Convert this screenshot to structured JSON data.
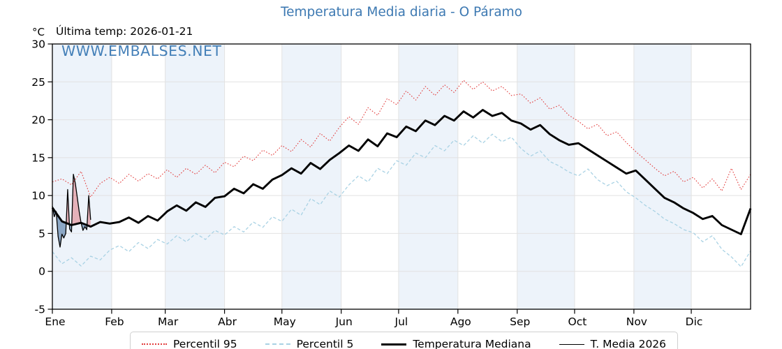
{
  "header": {
    "title": "Temperatura Media diaria - O Páramo",
    "unit_label": "°C",
    "last_temp_label": "Última temp: 2026-01-21",
    "watermark": "WWW.EMBALSES.NET"
  },
  "colors": {
    "title_blue": "#3d79b2",
    "percentil95_red": "#e23c3c",
    "percentil5_blue": "#a9d2e4",
    "median_black": "#000000",
    "fill_above": "rgba(215,70,80,0.38)",
    "fill_below": "rgba(60,105,155,0.55)",
    "month_band": "#edf3fa",
    "grid": "#e2e2e2",
    "axis": "#000000"
  },
  "chart_data": {
    "type": "line",
    "title": "Temperatura Media diaria - O Páramo",
    "xlabel": "",
    "ylabel": "°C",
    "ylim": [
      -5,
      30
    ],
    "y_ticks": [
      -5,
      0,
      5,
      10,
      15,
      20,
      25,
      30
    ],
    "x_tick_labels": [
      "Ene",
      "Feb",
      "Mar",
      "Abr",
      "May",
      "Jun",
      "Jul",
      "Ago",
      "Sep",
      "Oct",
      "Nov",
      "Dic"
    ],
    "month_start_days": [
      0,
      31,
      59,
      90,
      120,
      151,
      181,
      212,
      243,
      273,
      304,
      334,
      365
    ],
    "days_in_year": 365,
    "grid": true,
    "legend_position": "bottom",
    "series": [
      {
        "name": "Percentil 95",
        "style": "dotted",
        "color": "#e23c3c",
        "width": 1.1,
        "step_days": 5,
        "values": [
          11.8,
          12.2,
          11.4,
          13.2,
          9.8,
          11.6,
          12.4,
          11.6,
          12.8,
          11.9,
          12.9,
          12.2,
          13.4,
          12.4,
          13.6,
          12.8,
          14.0,
          13.0,
          14.4,
          13.8,
          15.2,
          14.6,
          16.0,
          15.3,
          16.6,
          15.8,
          17.4,
          16.4,
          18.2,
          17.2,
          19.0,
          20.4,
          19.4,
          21.6,
          20.6,
          22.8,
          22.0,
          23.8,
          22.6,
          24.4,
          23.2,
          24.6,
          23.6,
          25.2,
          24.0,
          25.0,
          23.8,
          24.4,
          23.2,
          23.4,
          22.2,
          22.9,
          21.4,
          21.9,
          20.6,
          19.8,
          18.8,
          19.4,
          17.9,
          18.4,
          17.0,
          15.8,
          14.7,
          13.6,
          12.6,
          13.2,
          11.8,
          12.4,
          11.0,
          12.2,
          10.6,
          13.6,
          10.8,
          12.8
        ]
      },
      {
        "name": "Percentil 5",
        "style": "dashed",
        "color": "#a9d2e4",
        "width": 1.3,
        "step_days": 5,
        "values": [
          2.6,
          1.0,
          1.8,
          0.7,
          2.0,
          1.5,
          2.8,
          3.4,
          2.6,
          3.8,
          3.0,
          4.2,
          3.6,
          4.7,
          3.9,
          5.0,
          4.2,
          5.4,
          4.8,
          5.9,
          5.2,
          6.5,
          5.8,
          7.2,
          6.6,
          8.2,
          7.4,
          9.6,
          8.8,
          10.6,
          9.8,
          11.4,
          12.6,
          11.8,
          13.6,
          12.9,
          14.6,
          14.0,
          15.6,
          15.0,
          16.6,
          15.9,
          17.3,
          16.6,
          17.9,
          16.9,
          18.1,
          17.1,
          17.7,
          16.2,
          15.2,
          15.9,
          14.5,
          13.9,
          13.1,
          12.6,
          13.5,
          12.1,
          11.3,
          11.9,
          10.5,
          9.7,
          8.7,
          7.9,
          6.9,
          6.3,
          5.5,
          5.1,
          3.9,
          4.7,
          2.9,
          1.9,
          0.6,
          2.7
        ]
      },
      {
        "name": "Temperatura Mediana",
        "style": "solid",
        "color": "#000000",
        "width": 2.9,
        "step_days": 5,
        "values": [
          8.4,
          6.6,
          6.1,
          6.4,
          5.9,
          6.5,
          6.3,
          6.5,
          7.1,
          6.4,
          7.3,
          6.7,
          7.9,
          8.7,
          8.0,
          9.1,
          8.5,
          9.7,
          9.9,
          10.9,
          10.3,
          11.5,
          10.9,
          12.1,
          12.7,
          13.6,
          12.9,
          14.3,
          13.5,
          14.7,
          15.6,
          16.6,
          15.9,
          17.4,
          16.5,
          18.2,
          17.7,
          19.1,
          18.5,
          19.9,
          19.3,
          20.5,
          19.9,
          21.1,
          20.3,
          21.3,
          20.5,
          20.9,
          19.9,
          19.5,
          18.7,
          19.3,
          18.1,
          17.3,
          16.7,
          16.9,
          16.1,
          15.3,
          14.5,
          13.7,
          12.9,
          13.3,
          12.1,
          10.9,
          9.7,
          9.1,
          8.3,
          7.7,
          6.9,
          7.3,
          6.1,
          5.5,
          4.9,
          8.3
        ]
      },
      {
        "name": "T. Media 2026",
        "style": "solid",
        "color": "#000000",
        "width": 1.3,
        "step_days": 1,
        "values": [
          8.6,
          7.2,
          7.9,
          4.6,
          3.2,
          4.9,
          4.4,
          5.0,
          10.8,
          5.6,
          5.2,
          12.8,
          11.6,
          9.8,
          7.9,
          6.4,
          5.4,
          5.9,
          5.5,
          10.0,
          6.8
        ]
      }
    ],
    "fills": {
      "between": [
        "T. Media 2026",
        "Temperatura Mediana"
      ],
      "above_color": "rgba(215,70,80,0.38)",
      "below_color": "rgba(60,105,155,0.55)"
    }
  },
  "legend": {
    "items": [
      "Percentil 95",
      "Percentil 5",
      "Temperatura Mediana",
      "T. Media 2026"
    ]
  }
}
